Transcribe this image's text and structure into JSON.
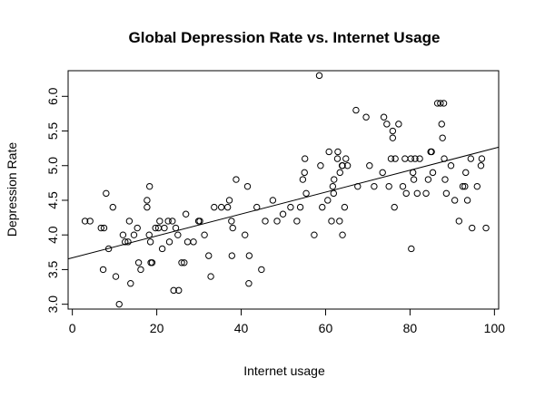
{
  "chart_data": {
    "type": "scatter",
    "title": "Global Depression Rate vs. Internet Usage",
    "xlabel": "Internet usage",
    "ylabel": "Depression Rate",
    "xlim": [
      -1,
      101
    ],
    "ylim": [
      2.93,
      6.37
    ],
    "x_ticks": [
      0,
      20,
      40,
      60,
      80,
      100
    ],
    "x_tick_labels": [
      "0",
      "20",
      "40",
      "60",
      "80",
      "100"
    ],
    "y_ticks": [
      3.0,
      3.5,
      4.0,
      4.5,
      5.0,
      5.5,
      6.0
    ],
    "y_tick_labels": [
      "3.0",
      "3.5",
      "4.0",
      "4.5",
      "5.0",
      "5.5",
      "6.0"
    ],
    "grid": false,
    "legend": "none",
    "marker": "open-circle",
    "fit_line": {
      "intercept": 3.67,
      "slope": 0.0158
    },
    "points": [
      [
        3.0,
        4.2
      ],
      [
        4.2,
        4.2
      ],
      [
        6.8,
        4.1
      ],
      [
        7.5,
        4.1
      ],
      [
        7.3,
        3.5
      ],
      [
        8.0,
        4.6
      ],
      [
        8.6,
        3.8
      ],
      [
        9.6,
        4.4
      ],
      [
        10.3,
        3.4
      ],
      [
        11.1,
        3.0
      ],
      [
        12.0,
        4.0
      ],
      [
        12.5,
        3.9
      ],
      [
        13.2,
        3.9
      ],
      [
        13.5,
        4.2
      ],
      [
        13.8,
        3.3
      ],
      [
        14.6,
        4.0
      ],
      [
        15.4,
        4.1
      ],
      [
        15.7,
        3.6
      ],
      [
        16.2,
        3.5
      ],
      [
        17.7,
        4.4
      ],
      [
        17.7,
        4.5
      ],
      [
        18.2,
        4.0
      ],
      [
        18.3,
        4.7
      ],
      [
        18.6,
        3.6
      ],
      [
        18.9,
        3.6
      ],
      [
        18.5,
        3.9
      ],
      [
        19.7,
        4.1
      ],
      [
        20.4,
        4.1
      ],
      [
        20.7,
        4.2
      ],
      [
        21.3,
        3.8
      ],
      [
        21.8,
        4.1
      ],
      [
        22.7,
        4.2
      ],
      [
        23.0,
        3.9
      ],
      [
        23.7,
        4.2
      ],
      [
        24.0,
        3.2
      ],
      [
        24.5,
        4.1
      ],
      [
        25.0,
        4.0
      ],
      [
        25.2,
        3.2
      ],
      [
        25.9,
        3.6
      ],
      [
        26.5,
        3.6
      ],
      [
        26.9,
        4.3
      ],
      [
        27.3,
        3.9
      ],
      [
        28.7,
        3.9
      ],
      [
        29.9,
        4.2
      ],
      [
        30.2,
        4.2
      ],
      [
        31.3,
        4.0
      ],
      [
        32.3,
        3.7
      ],
      [
        32.8,
        3.4
      ],
      [
        33.6,
        4.4
      ],
      [
        35.3,
        4.4
      ],
      [
        36.8,
        4.4
      ],
      [
        37.2,
        4.5
      ],
      [
        37.7,
        4.2
      ],
      [
        37.8,
        3.7
      ],
      [
        38.0,
        4.1
      ],
      [
        38.8,
        4.8
      ],
      [
        40.9,
        4.0
      ],
      [
        41.5,
        4.7
      ],
      [
        41.8,
        3.3
      ],
      [
        41.9,
        3.7
      ],
      [
        43.7,
        4.4
      ],
      [
        44.8,
        3.5
      ],
      [
        45.7,
        4.2
      ],
      [
        47.5,
        4.5
      ],
      [
        48.5,
        4.2
      ],
      [
        49.9,
        4.3
      ],
      [
        51.7,
        4.4
      ],
      [
        53.2,
        4.2
      ],
      [
        54.0,
        4.4
      ],
      [
        54.6,
        4.8
      ],
      [
        55.0,
        4.9
      ],
      [
        55.1,
        5.1
      ],
      [
        55.4,
        4.6
      ],
      [
        57.3,
        4.0
      ],
      [
        58.5,
        6.3
      ],
      [
        58.8,
        5.0
      ],
      [
        59.2,
        4.4
      ],
      [
        60.5,
        4.5
      ],
      [
        60.8,
        5.2
      ],
      [
        61.4,
        4.2
      ],
      [
        61.7,
        4.7
      ],
      [
        61.9,
        4.6
      ],
      [
        62.0,
        4.8
      ],
      [
        62.8,
        5.1
      ],
      [
        62.9,
        5.2
      ],
      [
        63.3,
        4.2
      ],
      [
        63.4,
        4.9
      ],
      [
        63.9,
        5.0
      ],
      [
        64.0,
        5.0
      ],
      [
        64.0,
        4.0
      ],
      [
        64.5,
        4.4
      ],
      [
        64.8,
        5.1
      ],
      [
        65.2,
        5.0
      ],
      [
        67.2,
        5.8
      ],
      [
        67.6,
        4.7
      ],
      [
        69.6,
        5.7
      ],
      [
        70.4,
        5.0
      ],
      [
        71.5,
        4.7
      ],
      [
        73.5,
        4.9
      ],
      [
        73.8,
        5.7
      ],
      [
        74.5,
        5.6
      ],
      [
        75.0,
        4.7
      ],
      [
        75.5,
        5.1
      ],
      [
        75.9,
        5.5
      ],
      [
        75.9,
        5.4
      ],
      [
        76.3,
        4.4
      ],
      [
        76.5,
        5.1
      ],
      [
        77.3,
        5.6
      ],
      [
        78.3,
        4.7
      ],
      [
        78.8,
        5.1
      ],
      [
        79.1,
        4.6
      ],
      [
        80.2,
        5.1
      ],
      [
        80.3,
        3.8
      ],
      [
        80.9,
        4.8
      ],
      [
        80.7,
        4.9
      ],
      [
        81.2,
        5.1
      ],
      [
        81.7,
        4.6
      ],
      [
        82.3,
        5.1
      ],
      [
        83.8,
        4.6
      ],
      [
        84.3,
        4.8
      ],
      [
        84.9,
        5.2
      ],
      [
        85.1,
        5.2
      ],
      [
        85.4,
        4.9
      ],
      [
        86.5,
        5.9
      ],
      [
        87.2,
        5.9
      ],
      [
        87.5,
        5.6
      ],
      [
        87.7,
        5.4
      ],
      [
        88.0,
        5.9
      ],
      [
        88.1,
        5.1
      ],
      [
        88.3,
        4.8
      ],
      [
        88.6,
        4.6
      ],
      [
        89.7,
        5.0
      ],
      [
        90.6,
        4.5
      ],
      [
        91.6,
        4.2
      ],
      [
        92.5,
        4.7
      ],
      [
        93.0,
        4.7
      ],
      [
        93.2,
        4.9
      ],
      [
        93.6,
        4.5
      ],
      [
        94.4,
        5.1
      ],
      [
        94.7,
        4.1
      ],
      [
        95.9,
        4.7
      ],
      [
        96.8,
        5.0
      ],
      [
        97.0,
        5.1
      ],
      [
        98.0,
        4.1
      ]
    ]
  }
}
